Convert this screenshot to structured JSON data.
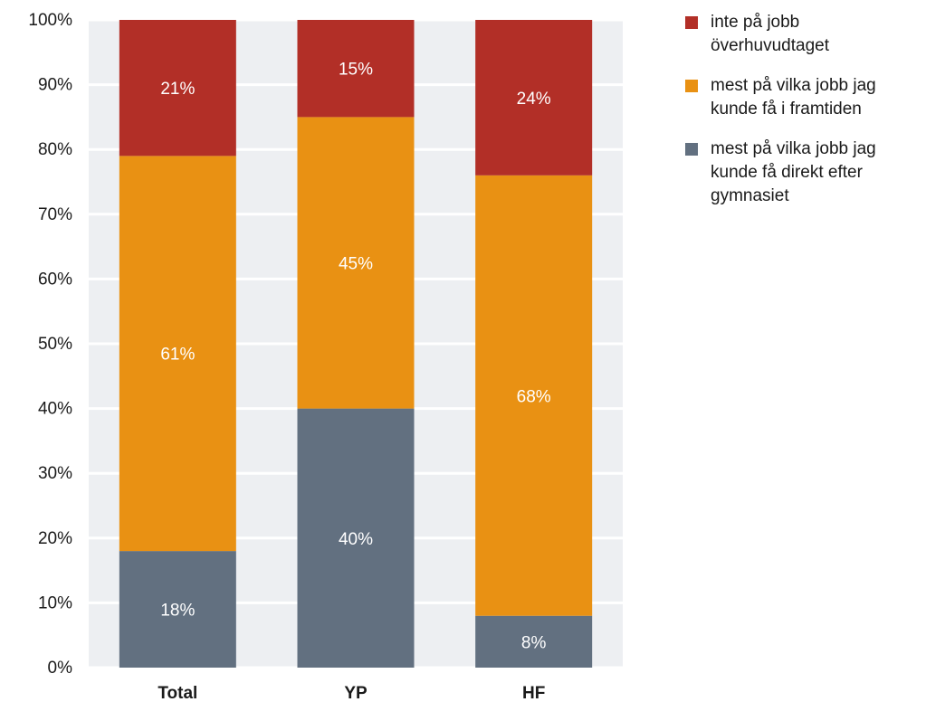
{
  "chart_data": {
    "type": "bar",
    "stacked": true,
    "categories": [
      "Total",
      "YP",
      "HF"
    ],
    "series": [
      {
        "name": "mest på vilka jobb jag kunde få direkt efter gymnasiet",
        "color": "#627080",
        "values": [
          18,
          40,
          8
        ]
      },
      {
        "name": "mest på vilka jobb jag kunde få i framtiden",
        "color": "#E99113",
        "values": [
          61,
          45,
          68
        ]
      },
      {
        "name": "inte på jobb överhuvudtaget",
        "color": "#B22F27",
        "values": [
          21,
          15,
          24
        ]
      }
    ],
    "data_labels": [
      [
        "18%",
        "40%",
        "8%"
      ],
      [
        "61%",
        "45%",
        "68%"
      ],
      [
        "21%",
        "15%",
        "24%"
      ]
    ],
    "yticks": [
      "0%",
      "10%",
      "20%",
      "30%",
      "40%",
      "50%",
      "60%",
      "70%",
      "80%",
      "90%",
      "100%"
    ],
    "ylim": [
      0,
      100
    ],
    "grid": true,
    "legend_position": "top-right",
    "plot_background": "#EDEFF2"
  },
  "legend": {
    "items": [
      {
        "label": "inte på jobb överhuvudtaget",
        "color": "#B22F27",
        "icon": "square"
      },
      {
        "label": "mest på vilka jobb jag kunde få i framtiden",
        "color": "#E99113",
        "icon": "square"
      },
      {
        "label": "mest på vilka jobb jag kunde få direkt efter gymnasiet",
        "color": "#627080",
        "icon": "square"
      }
    ]
  }
}
